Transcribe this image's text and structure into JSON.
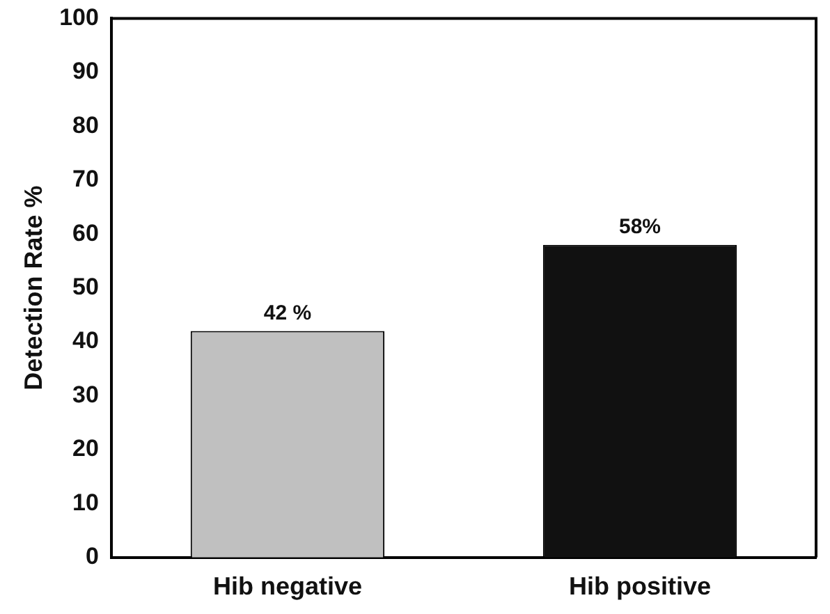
{
  "chart_data": {
    "type": "bar",
    "categories": [
      "Hib negative",
      "Hib positive"
    ],
    "values": [
      42,
      58
    ],
    "colors": [
      "#c0c0c0",
      "#111111"
    ],
    "value_labels": [
      "42 %",
      "58%"
    ],
    "ylabel": "Detection Rate %",
    "ylim": [
      0,
      100
    ],
    "yticks": [
      0,
      10,
      20,
      30,
      40,
      50,
      60,
      70,
      80,
      90,
      100
    ],
    "grid": false,
    "legend": false
  }
}
